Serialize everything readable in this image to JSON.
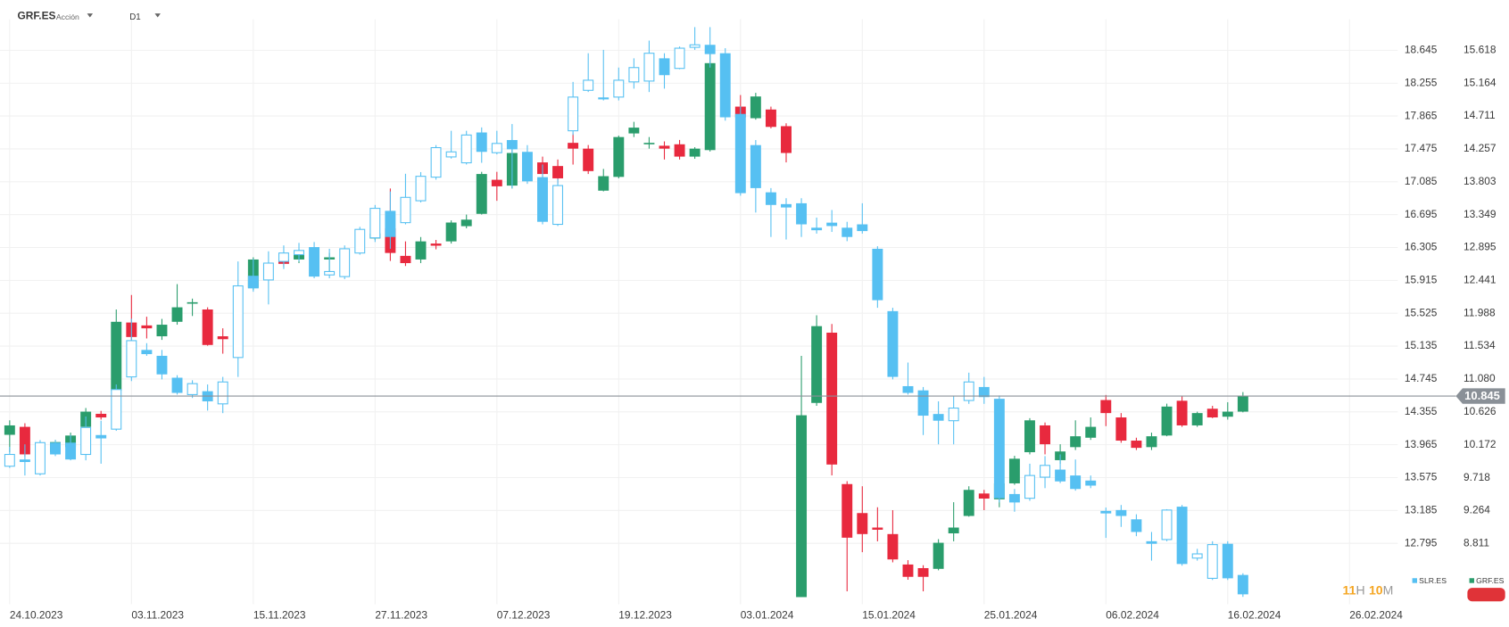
{
  "header": {
    "symbol": "GRF.ES",
    "kind": "Acción",
    "timeframe": "D1"
  },
  "countdown": [
    "11",
    "H",
    "10",
    "M"
  ],
  "chart_data": {
    "type": "candlestick",
    "categories": [
      "24.10.2023",
      null,
      null,
      null,
      null,
      null,
      null,
      null,
      "03.11.2023",
      null,
      null,
      null,
      null,
      null,
      null,
      null,
      "15.11.2023",
      null,
      null,
      null,
      null,
      null,
      null,
      null,
      "27.11.2023",
      null,
      null,
      null,
      null,
      null,
      null,
      null,
      "07.12.2023",
      null,
      null,
      null,
      null,
      null,
      null,
      null,
      "19.12.2023",
      null,
      null,
      null,
      null,
      null,
      null,
      null,
      "03.01.2024",
      null,
      null,
      null,
      null,
      null,
      null,
      null,
      "15.01.2024",
      null,
      null,
      null,
      null,
      null,
      null,
      null,
      "25.01.2024",
      null,
      null,
      null,
      null,
      null,
      null,
      null,
      "06.02.2024",
      null,
      null,
      null,
      null,
      null,
      null,
      null,
      "16.02.2024",
      null,
      null,
      null,
      null,
      null,
      null,
      null,
      "26.02.2024"
    ],
    "ylim": [
      12.072,
      18.955
    ],
    "yticks": [
      18.645,
      18.255,
      17.865,
      17.475,
      17.085,
      16.695,
      16.305,
      15.915,
      15.525,
      15.135,
      14.745,
      14.355,
      13.965,
      13.575,
      13.185,
      12.795
    ],
    "y2lim": [
      7.971,
      15.978
    ],
    "y2ticks": [
      15.618,
      15.164,
      14.711,
      14.257,
      13.803,
      13.349,
      12.895,
      12.441,
      11.988,
      11.534,
      {
        "value": 11.08,
        "label": "11.080"
      },
      10.626,
      10.172,
      9.718,
      9.264,
      8.811
    ],
    "last_price": 10.845,
    "grid": true,
    "series": [
      {
        "name": "GRF.ES",
        "axis": "y2",
        "up_color": "#2a9d6c",
        "down_color": "#e8293e",
        "values": [
          [
            10.31,
            10.51,
            10.07,
            10.44
          ],
          [
            10.42,
            10.47,
            10.01,
            10.04
          ],
          null,
          [
            10.07,
            10.24,
            10.04,
            10.21
          ],
          [
            10.14,
            10.34,
            9.97,
            10.3
          ],
          [
            10.42,
            10.68,
            10.38,
            10.63
          ],
          [
            10.6,
            10.64,
            10.52,
            10.55
          ],
          [
            10.92,
            12.04,
            10.87,
            11.87
          ],
          [
            11.86,
            12.24,
            11.44,
            11.66
          ],
          [
            11.82,
            11.94,
            11.64,
            11.78
          ],
          [
            11.67,
            11.91,
            11.62,
            11.83
          ],
          [
            11.87,
            12.39,
            11.83,
            12.07
          ],
          [
            12.12,
            12.19,
            11.95,
            12.14
          ],
          [
            12.04,
            12.07,
            11.54,
            11.55
          ],
          [
            11.67,
            11.78,
            11.43,
            11.63
          ],
          null,
          [
            12.34,
            12.76,
            12.31,
            12.73
          ],
          null,
          [
            12.73,
            12.82,
            12.63,
            12.67
          ],
          [
            12.73,
            12.87,
            12.68,
            12.8
          ],
          null,
          [
            12.73,
            12.82,
            12.51,
            12.76
          ],
          null,
          null,
          [
            13.02,
            13.44,
            13.0,
            13.09
          ],
          [
            13.16,
            13.71,
            12.71,
            12.82
          ],
          [
            12.78,
            12.98,
            12.64,
            12.68
          ],
          [
            12.73,
            13.04,
            12.68,
            12.98
          ],
          [
            12.95,
            13.0,
            12.87,
            12.92
          ],
          [
            12.98,
            13.27,
            12.95,
            13.24
          ],
          [
            13.19,
            13.35,
            13.16,
            13.28
          ],
          [
            13.36,
            13.94,
            13.35,
            13.91
          ],
          [
            13.83,
            13.94,
            13.54,
            13.74
          ],
          [
            13.75,
            14.38,
            13.71,
            14.2
          ],
          null,
          [
            14.07,
            14.15,
            13.8,
            13.91
          ],
          [
            14.02,
            14.11,
            13.78,
            13.85
          ],
          [
            14.34,
            14.47,
            14.04,
            14.26
          ],
          [
            14.26,
            14.31,
            13.91,
            13.95
          ],
          [
            13.68,
            13.98,
            13.67,
            13.88
          ],
          [
            13.87,
            14.44,
            13.85,
            14.42
          ],
          [
            14.47,
            14.63,
            14.42,
            14.55
          ],
          [
            14.32,
            14.42,
            14.26,
            14.34
          ],
          [
            14.3,
            14.36,
            14.11,
            14.26
          ],
          [
            14.32,
            14.38,
            14.11,
            14.15
          ],
          [
            14.15,
            14.28,
            14.12,
            14.26
          ],
          [
            14.24,
            15.58,
            14.22,
            15.44
          ],
          null,
          [
            14.84,
            15.0,
            14.64,
            14.69
          ],
          [
            14.68,
            15.03,
            14.66,
            14.98
          ],
          [
            14.8,
            14.84,
            14.54,
            14.56
          ],
          [
            14.57,
            14.61,
            14.07,
            14.2
          ],
          [
            8.07,
            11.4,
            8.07,
            10.58
          ],
          [
            10.75,
            11.96,
            10.71,
            11.81
          ],
          [
            11.72,
            11.84,
            9.75,
            9.9
          ],
          [
            9.63,
            9.67,
            8.15,
            8.89
          ],
          [
            9.23,
            9.6,
            8.69,
            8.94
          ],
          [
            9.03,
            9.31,
            8.84,
            9.0
          ],
          [
            8.94,
            9.27,
            8.55,
            8.59
          ],
          [
            8.52,
            8.58,
            8.31,
            8.35
          ],
          [
            8.47,
            8.51,
            8.15,
            8.35
          ],
          [
            8.46,
            8.87,
            8.44,
            8.82
          ],
          [
            8.95,
            9.38,
            8.84,
            9.03
          ],
          [
            9.19,
            9.6,
            9.18,
            9.55
          ],
          [
            9.5,
            9.55,
            9.27,
            9.43
          ],
          [
            9.42,
            9.7,
            9.31,
            9.64
          ],
          [
            9.64,
            10.02,
            9.62,
            9.98
          ],
          [
            10.07,
            10.54,
            10.04,
            10.51
          ],
          [
            10.44,
            10.48,
            10.04,
            10.18
          ],
          [
            9.96,
            10.18,
            9.91,
            10.08
          ],
          [
            10.14,
            10.51,
            10.1,
            10.29
          ],
          [
            10.27,
            10.55,
            10.24,
            10.42
          ],
          [
            10.79,
            10.86,
            10.43,
            10.61
          ],
          [
            10.55,
            10.61,
            10.2,
            10.23
          ],
          [
            10.23,
            10.27,
            10.1,
            10.13
          ],
          [
            10.14,
            10.34,
            10.1,
            10.29
          ],
          [
            10.3,
            10.74,
            10.29,
            10.7
          ],
          [
            10.78,
            10.84,
            10.42,
            10.44
          ],
          [
            10.44,
            10.63,
            10.42,
            10.61
          ],
          [
            10.67,
            10.71,
            10.54,
            10.55
          ],
          [
            10.56,
            10.76,
            10.52,
            10.63
          ],
          [
            10.63,
            10.9,
            10.62,
            10.85
          ],
          null,
          null,
          null,
          null,
          null,
          null,
          null
        ]
      },
      {
        "name": "SLR.ES",
        "axis": "y",
        "color": "#56c0f2",
        "hollow_up": true,
        "values": [
          [
            13.71,
            13.94,
            13.69,
            13.85
          ],
          [
            13.79,
            13.97,
            13.6,
            13.76
          ],
          [
            13.62,
            14.02,
            13.6,
            13.99
          ],
          [
            13.99,
            14.02,
            13.83,
            13.85
          ],
          [
            13.99,
            14.08,
            13.78,
            13.79
          ],
          [
            13.85,
            14.3,
            13.78,
            14.17
          ],
          [
            14.08,
            14.25,
            13.74,
            14.04
          ],
          [
            14.15,
            14.68,
            14.13,
            14.62
          ],
          [
            14.77,
            15.46,
            14.72,
            15.2
          ],
          [
            15.09,
            15.17,
            15.02,
            15.04
          ],
          [
            15.02,
            15.09,
            14.74,
            14.8
          ],
          [
            14.76,
            14.79,
            14.56,
            14.58
          ],
          [
            14.56,
            14.73,
            14.52,
            14.69
          ],
          [
            14.6,
            14.68,
            14.37,
            14.48
          ],
          [
            14.45,
            14.77,
            14.34,
            14.71
          ],
          [
            15.0,
            16.14,
            14.77,
            15.85
          ],
          [
            15.97,
            16.17,
            15.78,
            15.82
          ],
          [
            15.92,
            16.26,
            15.63,
            16.12
          ],
          [
            16.14,
            16.33,
            16.05,
            16.24
          ],
          [
            16.22,
            16.36,
            16.14,
            16.27
          ],
          [
            16.31,
            16.37,
            15.94,
            15.96
          ],
          [
            15.98,
            16.29,
            15.94,
            16.02
          ],
          [
            15.96,
            16.33,
            15.93,
            16.29
          ],
          [
            16.24,
            16.55,
            16.22,
            16.52
          ],
          [
            16.42,
            16.81,
            16.37,
            16.77
          ],
          [
            16.74,
            16.97,
            16.29,
            16.43
          ],
          [
            16.6,
            17.18,
            16.58,
            16.9
          ],
          [
            16.86,
            17.2,
            16.84,
            17.15
          ],
          [
            17.14,
            17.52,
            17.11,
            17.49
          ],
          [
            17.38,
            17.69,
            17.36,
            17.44
          ],
          [
            17.31,
            17.69,
            17.29,
            17.64
          ],
          [
            17.67,
            17.73,
            17.31,
            17.44
          ],
          [
            17.43,
            17.69,
            17.41,
            17.54
          ],
          [
            17.58,
            17.77,
            17.01,
            17.47
          ],
          [
            17.44,
            17.52,
            17.06,
            17.09
          ],
          [
            17.14,
            17.29,
            16.58,
            16.61
          ],
          [
            16.58,
            17.12,
            16.56,
            17.04
          ],
          [
            17.69,
            18.27,
            17.64,
            18.09
          ],
          [
            18.17,
            18.61,
            18.15,
            18.29
          ],
          [
            18.07,
            18.65,
            18.05,
            18.08
          ],
          [
            18.09,
            18.44,
            18.05,
            18.29
          ],
          [
            18.27,
            18.55,
            18.19,
            18.44
          ],
          [
            18.28,
            18.76,
            18.15,
            18.61
          ],
          [
            18.55,
            18.61,
            18.19,
            18.35
          ],
          [
            18.43,
            18.69,
            18.42,
            18.67
          ],
          [
            18.68,
            18.92,
            18.65,
            18.71
          ],
          [
            18.71,
            18.92,
            18.44,
            18.6
          ],
          [
            18.61,
            18.67,
            17.81,
            17.85
          ],
          [
            17.89,
            17.98,
            16.92,
            16.95
          ],
          [
            17.52,
            17.58,
            16.72,
            17.01
          ],
          [
            16.96,
            17.01,
            16.43,
            16.81
          ],
          [
            16.82,
            16.89,
            16.4,
            16.78
          ],
          [
            16.83,
            16.89,
            16.43,
            16.58
          ],
          [
            16.54,
            16.66,
            16.47,
            16.51
          ],
          [
            16.6,
            16.75,
            16.49,
            16.56
          ],
          [
            16.54,
            16.61,
            16.38,
            16.43
          ],
          [
            16.58,
            16.83,
            16.47,
            16.5
          ],
          [
            16.29,
            16.32,
            15.59,
            15.68
          ],
          [
            15.55,
            15.59,
            14.74,
            14.77
          ],
          [
            14.66,
            14.94,
            14.56,
            14.58
          ],
          [
            14.61,
            14.65,
            14.08,
            14.31
          ],
          [
            14.33,
            14.48,
            13.97,
            14.25
          ],
          [
            14.25,
            14.54,
            13.97,
            14.4
          ],
          [
            14.49,
            14.82,
            14.45,
            14.71
          ],
          [
            14.65,
            14.77,
            14.45,
            14.53
          ],
          [
            14.51,
            14.55,
            13.28,
            13.33
          ],
          [
            13.38,
            13.44,
            13.17,
            13.28
          ],
          [
            13.33,
            13.74,
            13.3,
            13.6
          ],
          [
            13.58,
            13.83,
            13.45,
            13.72
          ],
          [
            13.67,
            13.85,
            13.51,
            13.53
          ],
          [
            13.6,
            13.79,
            13.42,
            13.44
          ],
          [
            13.54,
            13.6,
            13.45,
            13.48
          ],
          [
            13.18,
            13.22,
            12.86,
            13.15
          ],
          [
            13.19,
            13.25,
            12.99,
            13.12
          ],
          [
            13.08,
            13.14,
            12.88,
            12.93
          ],
          [
            12.82,
            12.93,
            12.59,
            12.79
          ],
          [
            12.84,
            13.2,
            12.82,
            13.19
          ],
          [
            13.23,
            13.25,
            12.53,
            12.55
          ],
          [
            12.62,
            12.73,
            12.59,
            12.67
          ],
          [
            12.38,
            12.82,
            12.36,
            12.78
          ],
          [
            12.79,
            12.82,
            12.36,
            12.38
          ],
          [
            12.42,
            12.44,
            12.16,
            12.19
          ],
          null,
          null,
          null,
          null,
          null,
          null,
          null
        ]
      }
    ]
  }
}
